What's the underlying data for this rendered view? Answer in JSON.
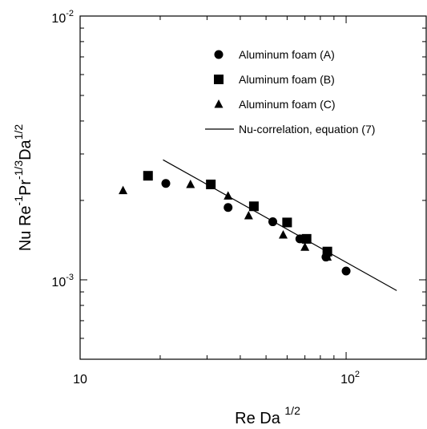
{
  "chart_data": {
    "type": "scatter",
    "x_scale": "log",
    "y_scale": "log",
    "xlim": [
      10,
      200
    ],
    "ylim": [
      0.0005,
      0.01
    ],
    "grid": false,
    "legend_position": "top-right",
    "xlabel": {
      "main": "Re Da",
      "sup": "1/2"
    },
    "ylabel": {
      "parts": [
        {
          "t": "Nu Re",
          "sup": false
        },
        {
          "t": "-1",
          "sup": true
        },
        {
          "t": "Pr",
          "sup": false
        },
        {
          "t": "-1/3",
          "sup": true
        },
        {
          "t": "Da",
          "sup": false
        },
        {
          "t": "1/2",
          "sup": true
        }
      ]
    },
    "x_tick_labels": [
      {
        "value": 10,
        "mantissa": "10",
        "exp": ""
      },
      {
        "value": 100,
        "mantissa": "10",
        "exp": "2"
      }
    ],
    "y_tick_labels": [
      {
        "value": 0.001,
        "mantissa": "10",
        "exp": "-3"
      },
      {
        "value": 0.01,
        "mantissa": "10",
        "exp": "-2"
      }
    ],
    "series": [
      {
        "name": "Aluminum foam (A)",
        "marker": "circle",
        "x": [
          21,
          36,
          53,
          67,
          84,
          100
        ],
        "y": [
          0.00232,
          0.00188,
          0.00166,
          0.00143,
          0.00122,
          0.00108
        ]
      },
      {
        "name": "Aluminum foam (B)",
        "marker": "square",
        "x": [
          18,
          31,
          45,
          60,
          71,
          85
        ],
        "y": [
          0.00248,
          0.0023,
          0.0019,
          0.00165,
          0.00143,
          0.00128
        ]
      },
      {
        "name": "Aluminum foam (C)",
        "marker": "triangle",
        "x": [
          14.5,
          26,
          36,
          43,
          58,
          70,
          85
        ],
        "y": [
          0.00218,
          0.0023,
          0.00208,
          0.00175,
          0.00148,
          0.00133,
          0.00122
        ]
      },
      {
        "name": "Nu-correlation, equation (7)",
        "marker": "line",
        "x": [
          20.5,
          155
        ],
        "y": [
          0.00285,
          0.00091
        ]
      }
    ]
  }
}
